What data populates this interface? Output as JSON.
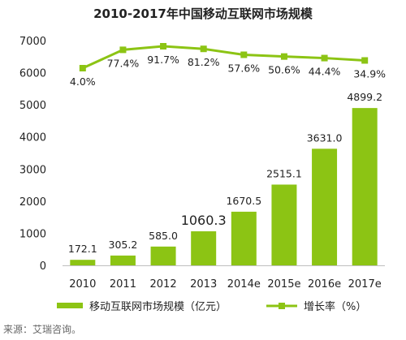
{
  "chart_data": {
    "type": "bar",
    "title": "2010-2017年中国移动互联网市场规模",
    "categories": [
      "2010",
      "2011",
      "2012",
      "2013",
      "2014e",
      "2015e",
      "2016e",
      "2017e"
    ],
    "series": [
      {
        "name": "移动互联网市场规模（亿元）",
        "type": "bar",
        "axis": "left",
        "color": "#8cc414",
        "values": [
          172.1,
          305.2,
          585.0,
          1060.3,
          1670.5,
          2515.1,
          3631.0,
          4899.2
        ],
        "labels": [
          "172.1",
          "305.2",
          "585.0",
          "1060.3",
          "1670.5",
          "2515.1",
          "3631.0",
          "4899.2"
        ]
      },
      {
        "name": "增长率（%）",
        "type": "line",
        "axis": "right",
        "color": "#8cc414",
        "values": [
          4.0,
          77.4,
          91.7,
          81.2,
          57.6,
          50.6,
          44.4,
          34.9
        ],
        "labels": [
          "4.0%",
          "77.4%",
          "91.7%",
          "81.2%",
          "57.6%",
          "50.6%",
          "44.4%",
          "34.9%"
        ]
      }
    ],
    "yaxis_left": {
      "min": 0,
      "max": 7000,
      "step": 1000,
      "ticks": [
        "0",
        "1000",
        "2000",
        "3000",
        "4000",
        "5000",
        "6000",
        "7000"
      ]
    },
    "grid": false,
    "legend_position": "bottom"
  },
  "source": "来源：艾瑞咨询。"
}
